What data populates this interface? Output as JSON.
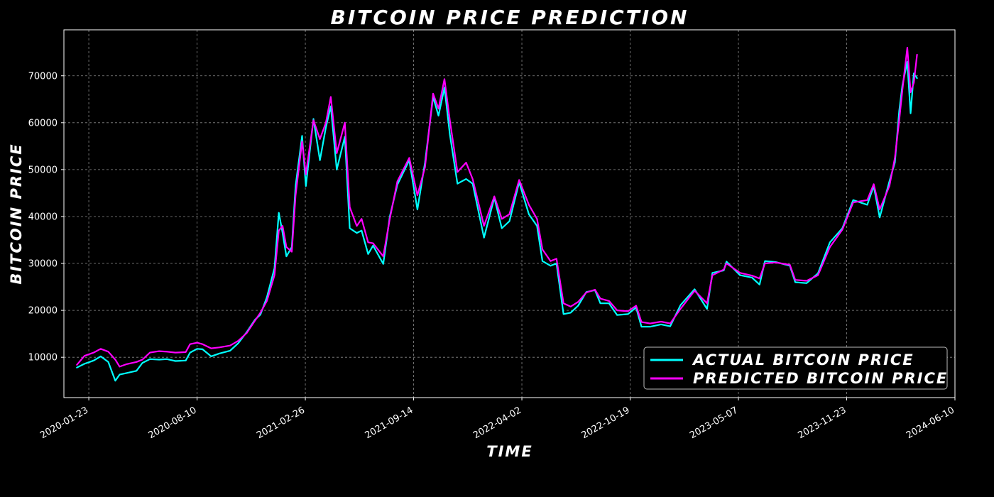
{
  "chart_data": {
    "type": "line",
    "title": "BITCOIN PRICE PREDICTION",
    "xlabel": "TIME",
    "ylabel": "BITCOIN PRICE",
    "x_ticks": [
      "2020-01-23",
      "2020-08-10",
      "2021-02-26",
      "2021-09-14",
      "2022-04-02",
      "2022-10-19",
      "2023-05-07",
      "2023-11-23",
      "2024-06-10"
    ],
    "y_ticks": [
      10000,
      20000,
      30000,
      40000,
      50000,
      60000,
      70000
    ],
    "xlim": [
      "2019-12-08",
      "2024-06-10"
    ],
    "ylim": [
      1400,
      79800
    ],
    "grid": true,
    "legend_position": "lower-right",
    "background": "#000000",
    "series": [
      {
        "name": "ACTUAL BITCOIN PRICE",
        "color": "#00FFFF",
        "points": [
          [
            "2020-01-01",
            7800
          ],
          [
            "2020-01-15",
            8600
          ],
          [
            "2020-02-01",
            9300
          ],
          [
            "2020-02-14",
            10200
          ],
          [
            "2020-02-28",
            9000
          ],
          [
            "2020-03-12",
            5000
          ],
          [
            "2020-03-20",
            6300
          ],
          [
            "2020-04-01",
            6600
          ],
          [
            "2020-04-20",
            7100
          ],
          [
            "2020-05-01",
            8800
          ],
          [
            "2020-05-15",
            9600
          ],
          [
            "2020-06-01",
            9500
          ],
          [
            "2020-06-15",
            9600
          ],
          [
            "2020-07-01",
            9200
          ],
          [
            "2020-07-20",
            9300
          ],
          [
            "2020-07-28",
            11000
          ],
          [
            "2020-08-10",
            11800
          ],
          [
            "2020-08-20",
            11700
          ],
          [
            "2020-09-05",
            10200
          ],
          [
            "2020-09-20",
            10800
          ],
          [
            "2020-10-10",
            11400
          ],
          [
            "2020-10-25",
            13000
          ],
          [
            "2020-11-10",
            15400
          ],
          [
            "2020-11-25",
            18000
          ],
          [
            "2020-12-05",
            19100
          ],
          [
            "2020-12-17",
            22800
          ],
          [
            "2020-12-31",
            29000
          ],
          [
            "2021-01-08",
            40800
          ],
          [
            "2021-01-15",
            36500
          ],
          [
            "2021-01-22",
            31500
          ],
          [
            "2021-02-01",
            33500
          ],
          [
            "2021-02-08",
            46500
          ],
          [
            "2021-02-20",
            57200
          ],
          [
            "2021-02-27",
            46500
          ],
          [
            "2021-03-13",
            60800
          ],
          [
            "2021-03-25",
            52000
          ],
          [
            "2021-04-05",
            59000
          ],
          [
            "2021-04-14",
            63500
          ],
          [
            "2021-04-25",
            50000
          ],
          [
            "2021-05-10",
            57000
          ],
          [
            "2021-05-19",
            37500
          ],
          [
            "2021-06-01",
            36500
          ],
          [
            "2021-06-10",
            37000
          ],
          [
            "2021-06-22",
            32000
          ],
          [
            "2021-07-01",
            33800
          ],
          [
            "2021-07-20",
            29900
          ],
          [
            "2021-08-01",
            40000
          ],
          [
            "2021-08-15",
            46800
          ],
          [
            "2021-09-06",
            52000
          ],
          [
            "2021-09-21",
            41500
          ],
          [
            "2021-10-05",
            51500
          ],
          [
            "2021-10-20",
            65500
          ],
          [
            "2021-10-30",
            61500
          ],
          [
            "2021-11-10",
            67500
          ],
          [
            "2021-11-20",
            57500
          ],
          [
            "2021-12-04",
            47000
          ],
          [
            "2021-12-20",
            48000
          ],
          [
            "2022-01-01",
            47000
          ],
          [
            "2022-01-22",
            35500
          ],
          [
            "2022-02-10",
            44000
          ],
          [
            "2022-02-24",
            37500
          ],
          [
            "2022-03-10",
            39000
          ],
          [
            "2022-03-28",
            47300
          ],
          [
            "2022-04-15",
            40500
          ],
          [
            "2022-04-30",
            38000
          ],
          [
            "2022-05-10",
            30500
          ],
          [
            "2022-05-25",
            29500
          ],
          [
            "2022-06-05",
            30000
          ],
          [
            "2022-06-18",
            19200
          ],
          [
            "2022-07-01",
            19500
          ],
          [
            "2022-07-15",
            21000
          ],
          [
            "2022-07-30",
            23900
          ],
          [
            "2022-08-15",
            24300
          ],
          [
            "2022-08-25",
            21500
          ],
          [
            "2022-09-10",
            21500
          ],
          [
            "2022-09-25",
            19000
          ],
          [
            "2022-10-15",
            19200
          ],
          [
            "2022-10-30",
            20600
          ],
          [
            "2022-11-09",
            16500
          ],
          [
            "2022-11-25",
            16500
          ],
          [
            "2022-12-15",
            17000
          ],
          [
            "2023-01-01",
            16600
          ],
          [
            "2023-01-20",
            21100
          ],
          [
            "2023-02-15",
            24500
          ],
          [
            "2023-03-10",
            20300
          ],
          [
            "2023-03-20",
            28000
          ],
          [
            "2023-04-10",
            28500
          ],
          [
            "2023-04-15",
            30400
          ],
          [
            "2023-05-10",
            27500
          ],
          [
            "2023-06-01",
            27000
          ],
          [
            "2023-06-15",
            25500
          ],
          [
            "2023-06-25",
            30500
          ],
          [
            "2023-07-15",
            30300
          ],
          [
            "2023-08-10",
            29500
          ],
          [
            "2023-08-20",
            26000
          ],
          [
            "2023-09-10",
            25800
          ],
          [
            "2023-10-01",
            27900
          ],
          [
            "2023-10-23",
            34500
          ],
          [
            "2023-11-15",
            37500
          ],
          [
            "2023-12-05",
            43500
          ],
          [
            "2023-12-31",
            42500
          ],
          [
            "2024-01-12",
            46500
          ],
          [
            "2024-01-23",
            39800
          ],
          [
            "2024-02-10",
            47500
          ],
          [
            "2024-02-20",
            51500
          ],
          [
            "2024-02-28",
            62500
          ],
          [
            "2024-03-05",
            68000
          ],
          [
            "2024-03-14",
            73000
          ],
          [
            "2024-03-20",
            62000
          ],
          [
            "2024-03-26",
            70500
          ],
          [
            "2024-04-01",
            69500
          ]
        ]
      },
      {
        "name": "PREDICTED BITCOIN PRICE",
        "color": "#FF00FF",
        "points": [
          [
            "2020-01-01",
            8400
          ],
          [
            "2020-01-15",
            10300
          ],
          [
            "2020-02-01",
            11000
          ],
          [
            "2020-02-14",
            11800
          ],
          [
            "2020-02-28",
            11200
          ],
          [
            "2020-03-12",
            9500
          ],
          [
            "2020-03-20",
            8000
          ],
          [
            "2020-04-01",
            8500
          ],
          [
            "2020-04-20",
            9000
          ],
          [
            "2020-05-01",
            9500
          ],
          [
            "2020-05-15",
            11000
          ],
          [
            "2020-06-01",
            11300
          ],
          [
            "2020-06-15",
            11200
          ],
          [
            "2020-07-01",
            11000
          ],
          [
            "2020-07-20",
            11100
          ],
          [
            "2020-07-28",
            12800
          ],
          [
            "2020-08-10",
            13100
          ],
          [
            "2020-08-20",
            12800
          ],
          [
            "2020-09-05",
            11900
          ],
          [
            "2020-09-20",
            12100
          ],
          [
            "2020-10-10",
            12500
          ],
          [
            "2020-10-25",
            13500
          ],
          [
            "2020-11-10",
            15200
          ],
          [
            "2020-11-25",
            17800
          ],
          [
            "2020-12-05",
            19500
          ],
          [
            "2020-12-17",
            22000
          ],
          [
            "2020-12-31",
            27500
          ],
          [
            "2021-01-08",
            37000
          ],
          [
            "2021-01-15",
            38000
          ],
          [
            "2021-01-22",
            33500
          ],
          [
            "2021-02-01",
            32500
          ],
          [
            "2021-02-08",
            44500
          ],
          [
            "2021-02-20",
            56000
          ],
          [
            "2021-02-27",
            49000
          ],
          [
            "2021-03-13",
            60500
          ],
          [
            "2021-03-25",
            56500
          ],
          [
            "2021-04-05",
            60000
          ],
          [
            "2021-04-14",
            65500
          ],
          [
            "2021-04-25",
            53500
          ],
          [
            "2021-05-10",
            60000
          ],
          [
            "2021-05-19",
            42000
          ],
          [
            "2021-06-01",
            38000
          ],
          [
            "2021-06-10",
            39500
          ],
          [
            "2021-06-22",
            34500
          ],
          [
            "2021-07-01",
            34300
          ],
          [
            "2021-07-20",
            31500
          ],
          [
            "2021-08-01",
            39500
          ],
          [
            "2021-08-15",
            47500
          ],
          [
            "2021-09-06",
            52500
          ],
          [
            "2021-09-21",
            44500
          ],
          [
            "2021-10-05",
            50500
          ],
          [
            "2021-10-20",
            66200
          ],
          [
            "2021-10-30",
            63000
          ],
          [
            "2021-11-10",
            69300
          ],
          [
            "2021-11-20",
            60500
          ],
          [
            "2021-12-04",
            49500
          ],
          [
            "2021-12-20",
            51500
          ],
          [
            "2022-01-01",
            48000
          ],
          [
            "2022-01-22",
            38000
          ],
          [
            "2022-02-10",
            44300
          ],
          [
            "2022-02-24",
            39500
          ],
          [
            "2022-03-10",
            40500
          ],
          [
            "2022-03-28",
            47800
          ],
          [
            "2022-04-15",
            42500
          ],
          [
            "2022-04-30",
            39500
          ],
          [
            "2022-05-10",
            33000
          ],
          [
            "2022-05-25",
            30500
          ],
          [
            "2022-06-05",
            31000
          ],
          [
            "2022-06-18",
            21500
          ],
          [
            "2022-07-01",
            20800
          ],
          [
            "2022-07-15",
            21800
          ],
          [
            "2022-07-30",
            23800
          ],
          [
            "2022-08-15",
            24400
          ],
          [
            "2022-08-25",
            22500
          ],
          [
            "2022-09-10",
            22000
          ],
          [
            "2022-09-25",
            20000
          ],
          [
            "2022-10-15",
            19800
          ],
          [
            "2022-10-30",
            21000
          ],
          [
            "2022-11-09",
            17500
          ],
          [
            "2022-11-25",
            17200
          ],
          [
            "2022-12-15",
            17600
          ],
          [
            "2023-01-01",
            17200
          ],
          [
            "2023-01-20",
            20300
          ],
          [
            "2023-02-15",
            24200
          ],
          [
            "2023-03-10",
            21500
          ],
          [
            "2023-03-20",
            27500
          ],
          [
            "2023-04-10",
            28700
          ],
          [
            "2023-04-15",
            30000
          ],
          [
            "2023-05-10",
            28000
          ],
          [
            "2023-06-01",
            27400
          ],
          [
            "2023-06-15",
            26800
          ],
          [
            "2023-06-25",
            30000
          ],
          [
            "2023-07-15",
            30200
          ],
          [
            "2023-08-10",
            29700
          ],
          [
            "2023-08-20",
            26500
          ],
          [
            "2023-09-10",
            26300
          ],
          [
            "2023-10-01",
            27500
          ],
          [
            "2023-10-23",
            33500
          ],
          [
            "2023-11-15",
            37200
          ],
          [
            "2023-12-05",
            43000
          ],
          [
            "2023-12-31",
            43500
          ],
          [
            "2024-01-12",
            46900
          ],
          [
            "2024-01-23",
            41500
          ],
          [
            "2024-02-10",
            46500
          ],
          [
            "2024-02-20",
            52500
          ],
          [
            "2024-02-28",
            60500
          ],
          [
            "2024-03-05",
            67000
          ],
          [
            "2024-03-14",
            76000
          ],
          [
            "2024-03-20",
            66500
          ],
          [
            "2024-03-26",
            68500
          ],
          [
            "2024-04-01",
            74500
          ]
        ]
      }
    ]
  }
}
